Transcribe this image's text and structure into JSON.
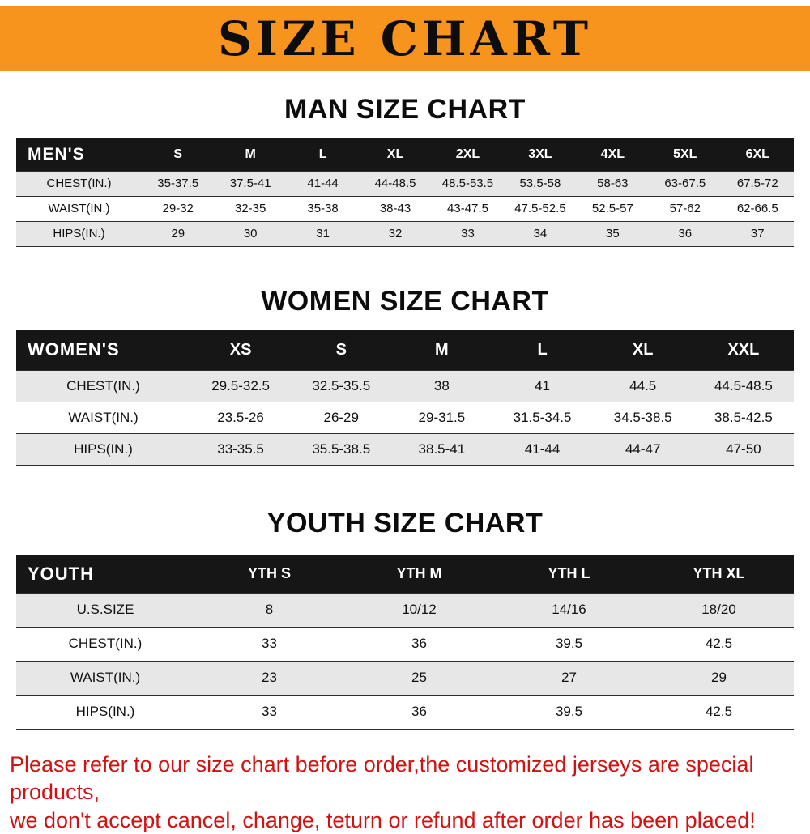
{
  "banner": {
    "title": "SIZE CHART"
  },
  "colors": {
    "banner_bg": "#f7941e",
    "table_header_bg": "#161616",
    "row_shade": "#e7e7e7",
    "footer_text": "#d01212"
  },
  "man": {
    "heading": "MAN SIZE CHART",
    "table": {
      "corner": "MEN'S",
      "columns": [
        "S",
        "M",
        "L",
        "XL",
        "2XL",
        "3XL",
        "4XL",
        "5XL",
        "6XL"
      ],
      "rows": [
        {
          "label": "CHEST(IN.)",
          "values": [
            "35-37.5",
            "37.5-41",
            "41-44",
            "44-48.5",
            "48.5-53.5",
            "53.5-58",
            "58-63",
            "63-67.5",
            "67.5-72"
          ]
        },
        {
          "label": "WAIST(IN.)",
          "values": [
            "29-32",
            "32-35",
            "35-38",
            "38-43",
            "43-47.5",
            "47.5-52.5",
            "52.5-57",
            "57-62",
            "62-66.5"
          ]
        },
        {
          "label": "HIPS(IN.)",
          "values": [
            "29",
            "30",
            "31",
            "32",
            "33",
            "34",
            "35",
            "36",
            "37"
          ]
        }
      ]
    }
  },
  "women": {
    "heading": "WOMEN SIZE CHART",
    "table": {
      "corner": "WOMEN'S",
      "columns": [
        "XS",
        "S",
        "M",
        "L",
        "XL",
        "XXL"
      ],
      "rows": [
        {
          "label": "CHEST(IN.)",
          "values": [
            "29.5-32.5",
            "32.5-35.5",
            "38",
            "41",
            "44.5",
            "44.5-48.5"
          ]
        },
        {
          "label": "WAIST(IN.)",
          "values": [
            "23.5-26",
            "26-29",
            "29-31.5",
            "31.5-34.5",
            "34.5-38.5",
            "38.5-42.5"
          ]
        },
        {
          "label": "HIPS(IN.)",
          "values": [
            "33-35.5",
            "35.5-38.5",
            "38.5-41",
            "41-44",
            "44-47",
            "47-50"
          ]
        }
      ]
    }
  },
  "youth": {
    "heading": "YOUTH SIZE CHART",
    "table": {
      "corner": "YOUTH",
      "columns": [
        "YTH S",
        "YTH M",
        "YTH L",
        "YTH XL"
      ],
      "rows": [
        {
          "label": "U.S.SIZE",
          "values": [
            "8",
            "10/12",
            "14/16",
            "18/20"
          ]
        },
        {
          "label": "CHEST(IN.)",
          "values": [
            "33",
            "36",
            "39.5",
            "42.5"
          ]
        },
        {
          "label": "WAIST(IN.)",
          "values": [
            "23",
            "25",
            "27",
            "29"
          ]
        },
        {
          "label": "HIPS(IN.)",
          "values": [
            "33",
            "36",
            "39.5",
            "42.5"
          ]
        }
      ]
    }
  },
  "footer": {
    "line1": "Please refer to our size chart before order,the customized jerseys are special products,",
    "line2": "we don't accept cancel, change, teturn or refund after order has been placed!"
  }
}
